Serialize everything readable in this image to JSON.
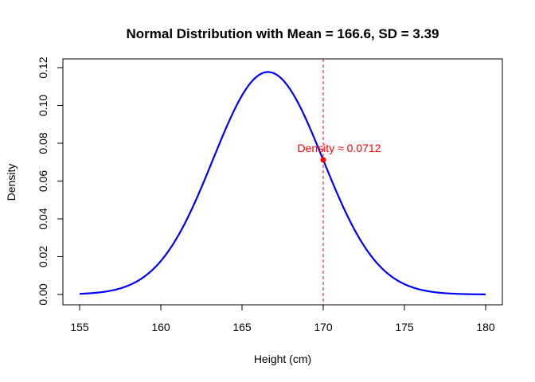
{
  "chart_data": {
    "type": "line",
    "title": "Normal Distribution with Mean = 166.6, SD = 3.39",
    "xlabel": "Height (cm)",
    "ylabel": "Density",
    "xlim": [
      155,
      180
    ],
    "ylim": [
      0,
      0.12
    ],
    "x_ticks": [
      155,
      160,
      165,
      170,
      175,
      180
    ],
    "y_ticks": [
      0.0,
      0.02,
      0.04,
      0.06,
      0.08,
      0.1,
      0.12
    ],
    "y_tick_labels": [
      "0.00",
      "0.02",
      "0.04",
      "0.06",
      "0.08",
      "0.10",
      "0.12"
    ],
    "grid": false,
    "legend": "none",
    "series": [
      {
        "color": "#0000ff",
        "distribution": "normal",
        "mean": 166.6,
        "sd": 3.39,
        "x_range": [
          155,
          180
        ]
      }
    ],
    "vline": {
      "x": 170,
      "color": "#ff0000",
      "style": "dashed"
    },
    "marker": {
      "x": 170,
      "y": 0.0712,
      "color": "#ff0000"
    },
    "annotation": {
      "text": "Density ≈ 0.0712",
      "x": 170,
      "y": 0.0712,
      "color": "#ff0000"
    }
  }
}
